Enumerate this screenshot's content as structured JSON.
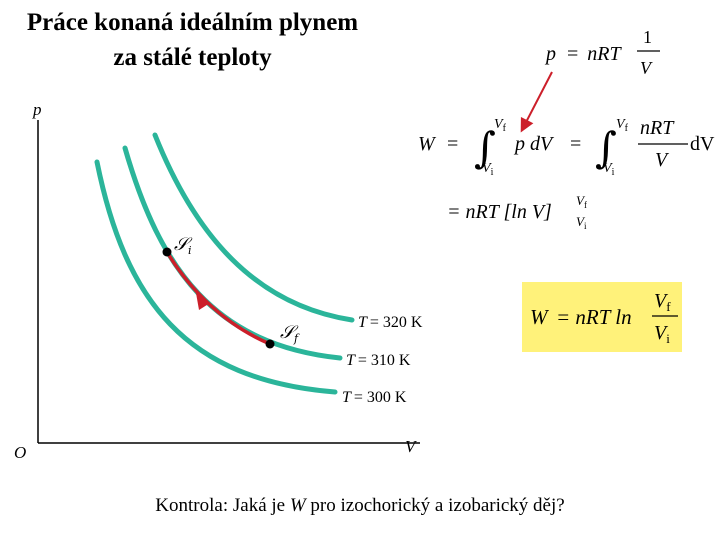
{
  "title": {
    "line1": "Práce konaná ideálním plynem",
    "line2": "za stálé teploty"
  },
  "axes": {
    "y_label": "p",
    "x_label": "V",
    "origin_label": "O"
  },
  "isotherms": [
    {
      "label_T": "T",
      "label_eq": "= 320 K"
    },
    {
      "label_T": "T",
      "label_eq": "= 310 K"
    },
    {
      "label_T": "T",
      "label_eq": "= 300 K"
    }
  ],
  "states": {
    "initial": {
      "symbol": "𝒮",
      "sub": "i"
    },
    "final": {
      "symbol": "𝒮",
      "sub": "f"
    }
  },
  "colors": {
    "isotherm": "#2bb59a",
    "path": "#cc1f2a",
    "highlight": "#fff27a"
  },
  "equations": {
    "pressure": {
      "lhs": "p",
      "eq": "=",
      "rhs": "nRT",
      "frac_num": "1",
      "frac_den": "V"
    },
    "work": {
      "W": "W",
      "eq": "=",
      "int_upper": "V",
      "int_upper_sub": "f",
      "int_lower": "V",
      "int_lower_sub": "i",
      "integrand": "p dV",
      "num": "nRT",
      "den": "V",
      "dV": "dV",
      "line2_rhs": "= nRT [ln V]",
      "bracket_upper": "V",
      "bracket_upper_sub": "f",
      "bracket_lower": "V",
      "bracket_lower_sub": "i"
    },
    "result": {
      "lhs": "W",
      "eq": "= nRT ln",
      "num": "V",
      "num_sub": "f",
      "den": "V",
      "den_sub": "i"
    }
  },
  "footer": {
    "prefix": "Kontrola: Jaká je ",
    "var": "W",
    "suffix": " pro izochorický a izobarický děj?"
  }
}
